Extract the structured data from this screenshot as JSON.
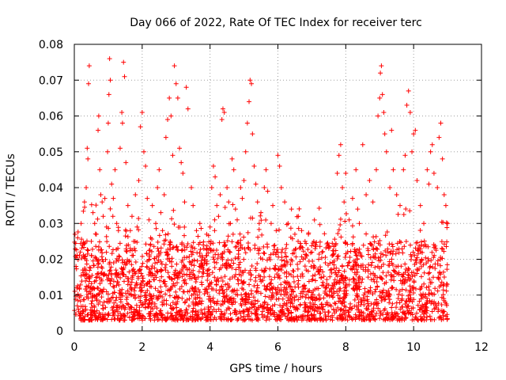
{
  "chart_data": {
    "type": "scatter",
    "title": "Day 066 of 2022, Rate Of TEC Index for receiver terc",
    "xlabel": "GPS time / hours",
    "ylabel": "ROTI / TECUs",
    "xlim": [
      0,
      12
    ],
    "ylim": [
      0,
      0.08
    ],
    "x_ticks": [
      0,
      2,
      4,
      6,
      8,
      10,
      12
    ],
    "y_ticks": [
      0,
      0.01,
      0.02,
      0.03,
      0.04,
      0.05,
      0.06,
      0.07,
      0.08
    ],
    "x_tick_labels": [
      "0",
      "2",
      "4",
      "6",
      "8",
      "10",
      "12"
    ],
    "y_tick_labels": [
      "0",
      "0.01",
      "0.02",
      "0.03",
      "0.04",
      "0.05",
      "0.06",
      "0.07",
      "0.08"
    ],
    "grid": true,
    "marker": "+",
    "color": "#ff0000",
    "series": [
      {
        "points": [
          [
            0.02,
            0.027
          ],
          [
            0.05,
            0.018
          ],
          [
            0.08,
            0.012
          ],
          [
            0.1,
            0.026
          ],
          [
            0.15,
            0.021
          ],
          [
            0.2,
            0.03
          ],
          [
            0.25,
            0.017
          ],
          [
            0.3,
            0.036
          ],
          [
            0.35,
            0.04
          ],
          [
            0.38,
            0.051
          ],
          [
            0.4,
            0.048
          ],
          [
            0.42,
            0.069
          ],
          [
            0.44,
            0.074
          ],
          [
            0.5,
            0.025
          ],
          [
            0.55,
            0.033
          ],
          [
            0.6,
            0.03
          ],
          [
            0.65,
            0.027
          ],
          [
            0.7,
            0.056
          ],
          [
            0.72,
            0.06
          ],
          [
            0.75,
            0.045
          ],
          [
            0.78,
            0.038
          ],
          [
            0.82,
            0.036
          ],
          [
            0.85,
            0.032
          ],
          [
            0.9,
            0.037
          ],
          [
            0.95,
            0.029
          ],
          [
            0.98,
            0.05
          ],
          [
            1.0,
            0.058
          ],
          [
            1.02,
            0.066
          ],
          [
            1.04,
            0.076
          ],
          [
            1.06,
            0.07
          ],
          [
            1.1,
            0.041
          ],
          [
            1.15,
            0.037
          ],
          [
            1.2,
            0.045
          ],
          [
            1.25,
            0.03
          ],
          [
            1.3,
            0.028
          ],
          [
            1.35,
            0.051
          ],
          [
            1.4,
            0.061
          ],
          [
            1.42,
            0.058
          ],
          [
            1.45,
            0.075
          ],
          [
            1.48,
            0.071
          ],
          [
            1.52,
            0.047
          ],
          [
            1.58,
            0.035
          ],
          [
            1.65,
            0.028
          ],
          [
            1.7,
            0.032
          ],
          [
            1.75,
            0.025
          ],
          [
            1.8,
            0.038
          ],
          [
            1.85,
            0.029
          ],
          [
            1.9,
            0.042
          ],
          [
            1.95,
            0.057
          ],
          [
            2.0,
            0.061
          ],
          [
            2.05,
            0.05
          ],
          [
            2.1,
            0.046
          ],
          [
            2.15,
            0.037
          ],
          [
            2.2,
            0.031
          ],
          [
            2.25,
            0.026
          ],
          [
            2.3,
            0.035
          ],
          [
            2.4,
            0.03
          ],
          [
            2.45,
            0.04
          ],
          [
            2.5,
            0.045
          ],
          [
            2.55,
            0.033
          ],
          [
            2.6,
            0.028
          ],
          [
            2.65,
            0.038
          ],
          [
            2.7,
            0.054
          ],
          [
            2.75,
            0.059
          ],
          [
            2.8,
            0.065
          ],
          [
            2.85,
            0.06
          ],
          [
            2.9,
            0.049
          ],
          [
            2.95,
            0.074
          ],
          [
            3.0,
            0.069
          ],
          [
            3.05,
            0.065
          ],
          [
            3.1,
            0.051
          ],
          [
            3.15,
            0.047
          ],
          [
            3.2,
            0.044
          ],
          [
            3.25,
            0.036
          ],
          [
            3.3,
            0.068
          ],
          [
            3.35,
            0.062
          ],
          [
            3.45,
            0.04
          ],
          [
            3.5,
            0.035
          ],
          [
            3.6,
            0.028
          ],
          [
            3.7,
            0.03
          ],
          [
            3.8,
            0.024
          ],
          [
            3.9,
            0.027
          ],
          [
            4.0,
            0.029
          ],
          [
            4.05,
            0.04
          ],
          [
            4.1,
            0.046
          ],
          [
            4.15,
            0.043
          ],
          [
            4.2,
            0.035
          ],
          [
            4.25,
            0.032
          ],
          [
            4.3,
            0.038
          ],
          [
            4.35,
            0.059
          ],
          [
            4.38,
            0.062
          ],
          [
            4.42,
            0.061
          ],
          [
            4.5,
            0.04
          ],
          [
            4.55,
            0.036
          ],
          [
            4.6,
            0.03
          ],
          [
            4.65,
            0.048
          ],
          [
            4.7,
            0.045
          ],
          [
            4.75,
            0.034
          ],
          [
            4.8,
            0.031
          ],
          [
            4.9,
            0.04
          ],
          [
            4.95,
            0.037
          ],
          [
            5.0,
            0.042
          ],
          [
            5.05,
            0.05
          ],
          [
            5.1,
            0.058
          ],
          [
            5.15,
            0.064
          ],
          [
            5.18,
            0.07
          ],
          [
            5.22,
            0.069
          ],
          [
            5.25,
            0.055
          ],
          [
            5.3,
            0.046
          ],
          [
            5.35,
            0.041
          ],
          [
            5.4,
            0.036
          ],
          [
            5.45,
            0.03
          ],
          [
            5.5,
            0.033
          ],
          [
            5.6,
            0.04
          ],
          [
            5.65,
            0.045
          ],
          [
            5.7,
            0.039
          ],
          [
            5.8,
            0.03
          ],
          [
            5.85,
            0.035
          ],
          [
            5.95,
            0.028
          ],
          [
            6.0,
            0.049
          ],
          [
            6.05,
            0.046
          ],
          [
            6.1,
            0.04
          ],
          [
            6.2,
            0.036
          ],
          [
            6.3,
            0.03
          ],
          [
            6.4,
            0.034
          ],
          [
            6.5,
            0.027
          ],
          [
            6.6,
            0.032
          ],
          [
            6.7,
            0.028
          ],
          [
            6.8,
            0.025
          ],
          [
            6.9,
            0.027
          ],
          [
            7.0,
            0.022
          ],
          [
            7.1,
            0.024
          ],
          [
            7.2,
            0.02
          ],
          [
            7.3,
            0.022
          ],
          [
            7.4,
            0.019
          ],
          [
            7.5,
            0.023
          ],
          [
            7.6,
            0.021
          ],
          [
            7.7,
            0.024
          ],
          [
            7.75,
            0.044
          ],
          [
            7.8,
            0.049
          ],
          [
            7.85,
            0.052
          ],
          [
            7.9,
            0.04
          ],
          [
            7.95,
            0.036
          ],
          [
            8.0,
            0.044
          ],
          [
            8.1,
            0.031
          ],
          [
            8.2,
            0.037
          ],
          [
            8.3,
            0.045
          ],
          [
            8.35,
            0.034
          ],
          [
            8.4,
            0.03
          ],
          [
            8.5,
            0.052
          ],
          [
            8.6,
            0.038
          ],
          [
            8.7,
            0.042
          ],
          [
            8.8,
            0.036
          ],
          [
            8.9,
            0.045
          ],
          [
            8.95,
            0.06
          ],
          [
            9.0,
            0.065
          ],
          [
            9.02,
            0.072
          ],
          [
            9.05,
            0.074
          ],
          [
            9.08,
            0.066
          ],
          [
            9.12,
            0.061
          ],
          [
            9.15,
            0.055
          ],
          [
            9.2,
            0.05
          ],
          [
            9.3,
            0.04
          ],
          [
            9.35,
            0.056
          ],
          [
            9.4,
            0.045
          ],
          [
            9.5,
            0.038
          ],
          [
            9.6,
            0.035
          ],
          [
            9.7,
            0.045
          ],
          [
            9.75,
            0.049
          ],
          [
            9.8,
            0.063
          ],
          [
            9.85,
            0.067
          ],
          [
            9.9,
            0.061
          ],
          [
            9.95,
            0.05
          ],
          [
            10.0,
            0.055
          ],
          [
            10.05,
            0.056
          ],
          [
            10.1,
            0.042
          ],
          [
            10.2,
            0.035
          ],
          [
            10.3,
            0.03
          ],
          [
            10.4,
            0.045
          ],
          [
            10.45,
            0.041
          ],
          [
            10.5,
            0.05
          ],
          [
            10.55,
            0.052
          ],
          [
            10.6,
            0.044
          ],
          [
            10.7,
            0.04
          ],
          [
            10.75,
            0.054
          ],
          [
            10.8,
            0.058
          ],
          [
            10.85,
            0.048
          ],
          [
            10.9,
            0.038
          ],
          [
            10.95,
            0.035
          ],
          [
            11.0,
            0.03
          ]
        ],
        "bulk_note": ""
      }
    ],
    "bulk_band": {
      "x_range": [
        0,
        11.0
      ],
      "y_range": [
        0.003,
        0.025
      ],
      "density": "high"
    }
  }
}
